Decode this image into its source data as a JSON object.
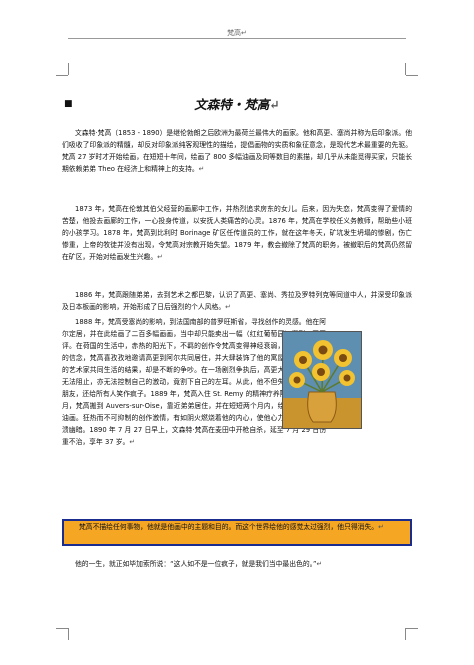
{
  "header": {
    "text": "梵高↵"
  },
  "doc": {
    "title": "文森特・梵高",
    "para_mark": "↵",
    "p1": "文森特·梵高（1853 - 1890）是继伦勃朗之后欧洲为最荷兰最伟大的画家。他和高更、塞尚并称为后印象派。他们吸收了印象派的精髓，却反对印象派纯客观理性的描绘，提倡画物的实质和象征意念，是现代艺术最重要的先驱。梵高 27 岁时才开始绘画，在短短十年间，绘画了 800 多幅油画及同等数目的素描，却几乎从未能觅得买家，只能长期依赖弟弟 Theo 在经济上和精神上的支持。",
    "p2": "1873 年，梵高在伦敦其伯父经营的画廊中工作，并热烈追求房东的女儿。后来，因为失恋，梵高变得了爱情的苦楚，他投去画廊的工作，一心投身传道，以安抚人类痛苦的心灵。1876 年，梵高在学校任义务教师，帮助些小班的小孩学习。1878 年，梵高到比利时 Borinage 矿区任传道员的工作，就在这年冬天，矿坑发生坍塌的惨剧，伤亡惨重，上帝的牧徒并没有出现，令梵高对宗教开始失望。1879 年，教会撤除了梵高的职务，被撤职后的梵高仍然留在矿区，开始对绘画发生兴趣。",
    "p3": "1886 年，梵高跟随弟弟，去到艺术之都巴黎，认识了高更、塞尚、秀拉及罗特列克等同道中人，并深受印象派及日本板画的影响，开始形成了日后强烈的个人风格。",
    "p4": "1888 年，梵高受塞尚的影响，到法国南部的普罗旺斯省，寻找创作的灵感。他在阿尔定居，并在此绘画了二百多幅画画，当中却只能卖出一幅（红红葡萄园）得到一四画评。在荷国的生活中，赤热的阳光下，不羁的创作令梵高变得神经衰弱，为了加强自己的信念，梵高喜孜孜地邀请高更到阿尔共同居住，并大肆装饰了他的寓屋。但两个固执的艺术家共同生活的结果，却是不断的争吵。在一场剧烈争执后，高更大怒而去，梵高无法阻止，亦无法控制自己的激动，竟割下自己的左耳。从此，他不但失去高更这个好朋友，还给所有人笑作疯子。1889 年，梵高入住 St. Remy 的精神疗养院。1890 年 5 月，梵高搬到 Auvers-sur-Oise，靠近弟弟居住，并在短短两个月内，绘画了七十多幅油画。狂热而不可抑制的创作激情，有如阴火燃烧着他的内心，使他心力交瘁，精神崩溃幽暗。1890 年 7 月 27 日早上，文森特·梵高在麦田中开枪自杀，延至 7 月 29 日伤重不治，享年 37 岁。",
    "highlight": "梵高不描绘任何事物，他就是他画中的主题和目的。而这个世界绘他的感觉太过强烈，他只得消失。",
    "last": "他的一生，就正如毕加索所说：“这人如不是一位疯子，就是我们当中最出色的。”"
  },
  "painting": {
    "name": "sunflowers-painting",
    "colors": {
      "bg": "#5e8fb0",
      "vase": "#d9a13b",
      "table": "#c9932e",
      "petal": "#f2c230",
      "center": "#7a4a12",
      "stem": "#5d7a2a"
    }
  }
}
